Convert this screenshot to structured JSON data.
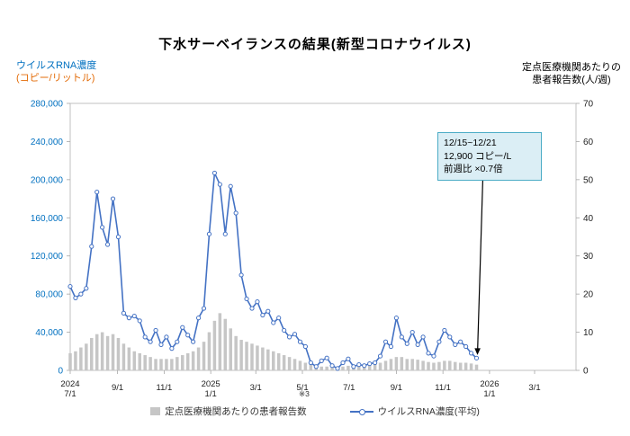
{
  "title": "下水サーベイランスの結果(新型コロナウイルス)",
  "left_axis": {
    "title_line1": "ウイルスRNA濃度",
    "title_line2": "(コピー/リットル)",
    "ticks": [
      {
        "label": "0",
        "value": 0
      },
      {
        "label": "40,000",
        "value": 40000
      },
      {
        "label": "80,000",
        "value": 80000
      },
      {
        "label": "120,000",
        "value": 120000
      },
      {
        "label": "160,000",
        "value": 160000
      },
      {
        "label": "200,000",
        "value": 200000
      },
      {
        "label": "240,000",
        "value": 240000
      },
      {
        "label": "280,000",
        "value": 280000
      }
    ]
  },
  "right_axis": {
    "title_line1": "定点医療機関あたりの",
    "title_line2": "患者報告数(人/週)",
    "ticks": [
      {
        "label": "0",
        "value": 0
      },
      {
        "label": "10",
        "value": 10
      },
      {
        "label": "20",
        "value": 20
      },
      {
        "label": "30",
        "value": 30
      },
      {
        "label": "40",
        "value": 40
      },
      {
        "label": "50",
        "value": 50
      },
      {
        "label": "60",
        "value": 60
      },
      {
        "label": "70",
        "value": 70
      }
    ]
  },
  "x_axis": {
    "ticks": [
      {
        "year": "2024",
        "label": "7/1",
        "day": 0
      },
      {
        "year": "",
        "label": "9/1",
        "day": 62
      },
      {
        "year": "",
        "label": "11/1",
        "day": 123
      },
      {
        "year": "2025",
        "label": "1/1",
        "day": 184
      },
      {
        "year": "",
        "label": "3/1",
        "day": 243
      },
      {
        "year": "",
        "label": "5/1",
        "day": 304
      },
      {
        "year": "",
        "label": "7/1",
        "day": 365
      },
      {
        "year": "",
        "label": "9/1",
        "day": 427
      },
      {
        "year": "",
        "label": "11/1",
        "day": 488
      },
      {
        "year": "2026",
        "label": "1/1",
        "day": 549
      },
      {
        "year": "",
        "label": "3/1",
        "day": 608
      }
    ]
  },
  "annotation": {
    "line1": "12/15~12/21",
    "line2": "12,900 コピー/L",
    "line3": "前週比 ×0.7倍"
  },
  "footnote": "※3",
  "legend": {
    "bars_label": "定点医療機関あたりの患者報告数",
    "line_label": "ウイルスRNA濃度(平均)"
  },
  "colors": {
    "line": "#4472C4",
    "bar": "#C6C6C6",
    "left_axis_text": "#0070C0",
    "right_axis_text": "#222222",
    "annotation_bg": "#DBEEF5",
    "annotation_border": "#4BACC6",
    "plot_border": "#C0C0C0"
  },
  "chart_data": {
    "type": "line",
    "title": "下水サーベイランスの結果(新型コロナウイルス)",
    "x_start_date": "2024-07-01",
    "x_interval": "weekly",
    "x_range_days": [
      0,
      662
    ],
    "left_ylim": [
      0,
      280000
    ],
    "right_ylim": [
      0,
      70
    ],
    "grid": false,
    "legend_position": "bottom",
    "series": [
      {
        "name": "ウイルスRNA濃度(平均)",
        "type": "line",
        "axis": "left",
        "values": [
          88000,
          76000,
          80000,
          86000,
          130000,
          187000,
          150000,
          132000,
          180000,
          140000,
          60000,
          55000,
          57000,
          52000,
          35000,
          30000,
          42000,
          27000,
          35000,
          23000,
          30000,
          45000,
          37000,
          30000,
          55000,
          65000,
          143000,
          207000,
          195000,
          143000,
          193000,
          165000,
          100000,
          75000,
          65000,
          72000,
          58000,
          62000,
          50000,
          55000,
          42000,
          35000,
          38000,
          30000,
          25000,
          8000,
          4000,
          10000,
          13000,
          5000,
          2000,
          8000,
          12000,
          4000,
          6000,
          5000,
          7000,
          8000,
          15000,
          30000,
          25000,
          55000,
          35000,
          28000,
          40000,
          27000,
          35000,
          18000,
          15000,
          30000,
          42000,
          35000,
          27000,
          30000,
          25000,
          18000,
          12900
        ]
      },
      {
        "name": "定点医療機関あたりの患者報告数",
        "type": "bar",
        "axis": "right",
        "values": [
          4.5,
          5,
          6,
          7,
          8.5,
          9.5,
          10,
          9,
          9.5,
          8.5,
          7,
          6,
          5,
          4.5,
          4,
          3.5,
          3,
          3,
          3,
          3,
          3.5,
          4,
          4.5,
          5,
          6,
          7.5,
          10,
          13,
          15,
          13.5,
          11,
          9,
          8,
          7.5,
          7,
          6.5,
          6,
          5.5,
          5,
          4.5,
          4,
          3.5,
          3,
          2.5,
          2,
          1.5,
          1.2,
          1,
          1,
          0.8,
          0.8,
          1,
          1.2,
          1,
          1,
          1.2,
          1.5,
          1.8,
          2,
          2.5,
          3,
          3.5,
          3.5,
          3,
          3,
          2.8,
          2.5,
          2.2,
          2,
          2.2,
          2.5,
          2.5,
          2.2,
          2,
          2,
          1.8,
          1.5
        ]
      }
    ]
  }
}
